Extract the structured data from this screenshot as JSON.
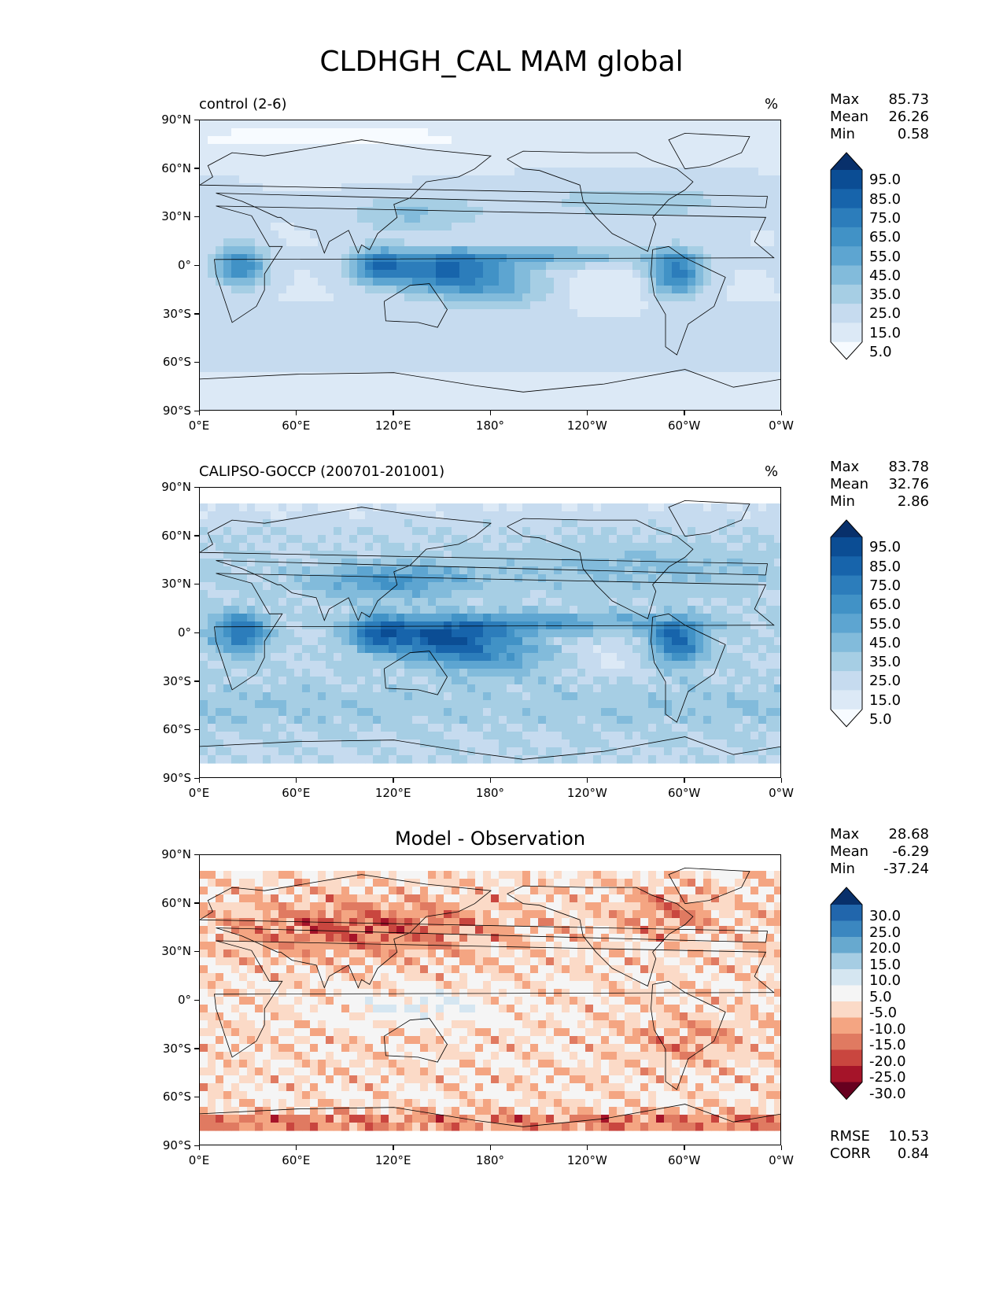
{
  "figure_title": "CLDHGH_CAL MAM global",
  "lat_labels": [
    "90°N",
    "60°N",
    "30°N",
    "0°",
    "30°S",
    "60°S",
    "90°S"
  ],
  "lon_labels": [
    "0°E",
    "60°E",
    "120°E",
    "180°",
    "120°W",
    "60°W",
    "0°W"
  ],
  "panels": [
    {
      "id": "control",
      "left_title": "control (2-6)",
      "center_title": "",
      "units": "%",
      "stats": {
        "max_label": "Max",
        "max": "85.73",
        "mean_label": "Mean",
        "mean": "26.26",
        "min_label": "Min",
        "min": "0.58"
      },
      "colorbar": {
        "levels": [
          "95.0",
          "85.0",
          "75.0",
          "65.0",
          "55.0",
          "45.0",
          "35.0",
          "25.0",
          "15.0",
          "5.0"
        ],
        "colors": [
          "#08306b",
          "#0b4d94",
          "#1764ab",
          "#2c7dbb",
          "#4192c6",
          "#5da5d1",
          "#82bbdb",
          "#a6cee4",
          "#c6dbef",
          "#dce9f6",
          "#f7fbff"
        ]
      }
    },
    {
      "id": "obs",
      "left_title": "CALIPSO-GOCCP (200701-201001)",
      "center_title": "",
      "units": "%",
      "stats": {
        "max_label": "Max",
        "max": "83.78",
        "mean_label": "Mean",
        "mean": "32.76",
        "min_label": "Min",
        "min": "2.86"
      },
      "colorbar": {
        "levels": [
          "95.0",
          "85.0",
          "75.0",
          "65.0",
          "55.0",
          "45.0",
          "35.0",
          "25.0",
          "15.0",
          "5.0"
        ],
        "colors": [
          "#08306b",
          "#0b4d94",
          "#1764ab",
          "#2c7dbb",
          "#4192c6",
          "#5da5d1",
          "#82bbdb",
          "#a6cee4",
          "#c6dbef",
          "#dce9f6",
          "#f7fbff"
        ]
      }
    },
    {
      "id": "diff",
      "left_title": "",
      "center_title": "Model - Observation",
      "units": "",
      "stats": {
        "max_label": "Max",
        "max": "28.68",
        "mean_label": "Mean",
        "mean": "-6.29",
        "min_label": "Min",
        "min": "-37.24"
      },
      "colorbar": {
        "levels": [
          "30.0",
          "25.0",
          "20.0",
          "15.0",
          "10.0",
          "5.0",
          "-5.0",
          "-10.0",
          "-15.0",
          "-20.0",
          "-25.0",
          "-30.0"
        ],
        "colors": [
          "#08306b",
          "#2166ac",
          "#3b87c0",
          "#67a9cf",
          "#a6cde3",
          "#d5e6f1",
          "#f5f5f5",
          "#fbdac7",
          "#f4a582",
          "#e07a61",
          "#c9463f",
          "#a51429",
          "#67001f"
        ]
      },
      "metrics": {
        "rmse_label": "RMSE",
        "rmse": "10.53",
        "corr_label": "CORR",
        "corr": "0.84"
      }
    }
  ]
}
